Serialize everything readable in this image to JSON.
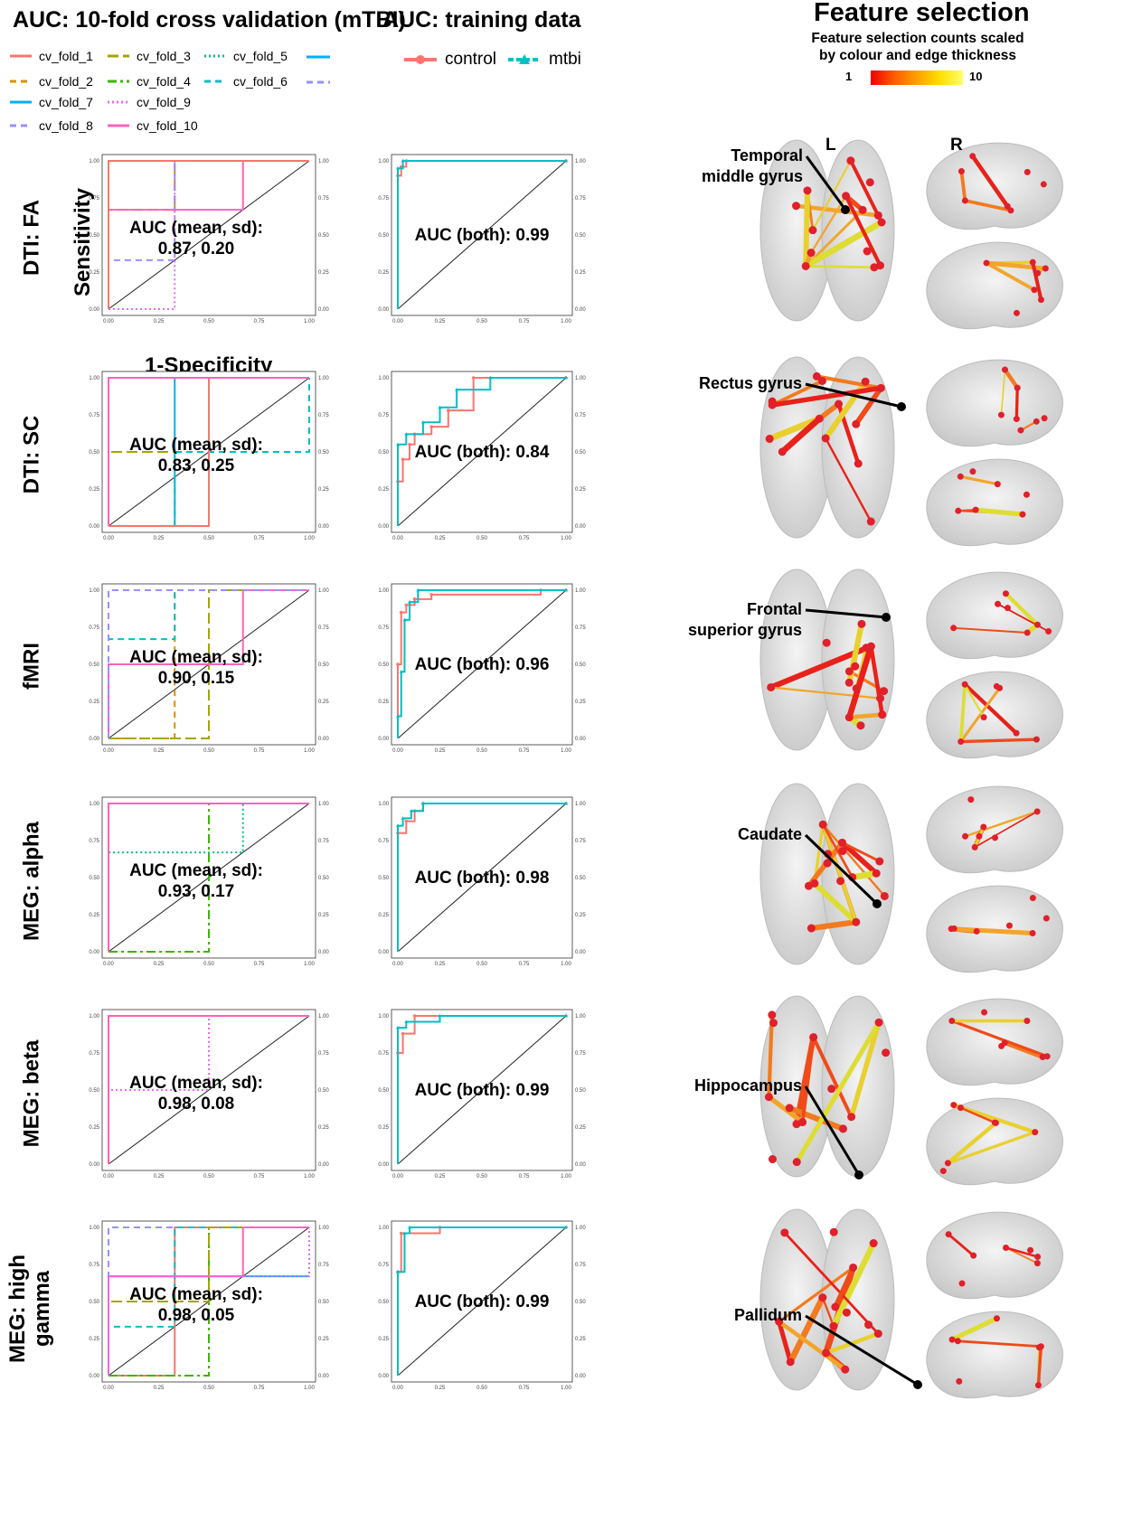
{
  "titles": {
    "cv": "AUC: 10-fold cross validation (mTBI)",
    "train": "AUC: training data",
    "feature": "Feature selection",
    "feature_sub1": "Feature selection counts scaled",
    "feature_sub2": "by colour and edge thickness",
    "scale_min": "1",
    "scale_max": "10",
    "side_left": "L",
    "side_right": "R"
  },
  "axes": {
    "ylabel": "Sensitivity",
    "xlabel": "1-Specificity",
    "ticks": [
      "0.00",
      "0.25",
      "0.50",
      "0.75",
      "1.00"
    ]
  },
  "cv_legend": [
    {
      "name": "cv_fold_1",
      "color": "#F8766D",
      "dash": "solid"
    },
    {
      "name": "cv_fold_2",
      "color": "#D89000",
      "dash": "dashed"
    },
    {
      "name": "cv_fold_3",
      "color": "#A3A500",
      "dash": "longdash"
    },
    {
      "name": "cv_fold_4",
      "color": "#39B600",
      "dash": "twodash"
    },
    {
      "name": "cv_fold_5",
      "color": "#00BF7D",
      "dash": "dotted"
    },
    {
      "name": "cv_fold_6",
      "color": "#00BFC4",
      "dash": "dashed"
    },
    {
      "name": "cv_fold_7",
      "color": "#00B0F6",
      "dash": "solid"
    },
    {
      "name": "cv_fold_8",
      "color": "#9590FF",
      "dash": "dashed"
    },
    {
      "name": "cv_fold_9",
      "color": "#E76BF3",
      "dash": "dotted"
    },
    {
      "name": "cv_fold_10",
      "color": "#FF62BC",
      "dash": "solid"
    }
  ],
  "train_legend": [
    {
      "name": "control",
      "color": "#F8766D"
    },
    {
      "name": "mtbi",
      "color": "#00BFC4"
    }
  ],
  "chart_data": [
    {
      "type": "line",
      "row": "DTI: FA",
      "panel": "cv",
      "auc_text": "AUC (mean, sd):\n0.87, 0.20",
      "ylim": [
        0,
        1
      ],
      "xlim": [
        0,
        1
      ],
      "series": [
        {
          "name": "cv_fold_3",
          "x": [
            0,
            0,
            0.33,
            0.33,
            1
          ],
          "y": [
            0,
            0.67,
            0.67,
            1,
            1
          ]
        },
        {
          "name": "cv_fold_8",
          "x": [
            0,
            0,
            0.33,
            0.33,
            1
          ],
          "y": [
            0,
            0.33,
            0.33,
            1,
            1
          ]
        },
        {
          "name": "cv_fold_9",
          "x": [
            0,
            0,
            0.33,
            0.33,
            1
          ],
          "y": [
            0,
            0,
            0,
            1,
            1
          ]
        },
        {
          "name": "cv_fold_10",
          "x": [
            0,
            0,
            0.67,
            0.67,
            1
          ],
          "y": [
            0,
            0.67,
            0.67,
            1,
            1
          ]
        },
        {
          "name": "cv_fold_1",
          "x": [
            0,
            0,
            1
          ],
          "y": [
            0,
            1,
            1
          ]
        }
      ]
    },
    {
      "type": "line",
      "row": "DTI: FA",
      "panel": "train",
      "auc_text": "AUC (both): 0.99",
      "ylim": [
        0,
        1
      ],
      "xlim": [
        0,
        1
      ],
      "series": [
        {
          "name": "control",
          "x": [
            0,
            0,
            0.02,
            0.02,
            0.05,
            0.05,
            1
          ],
          "y": [
            0,
            0.9,
            0.9,
            0.96,
            0.96,
            1,
            1
          ]
        },
        {
          "name": "mtbi",
          "x": [
            0,
            0,
            0.03,
            0.03,
            1
          ],
          "y": [
            0,
            0.95,
            0.95,
            1,
            1
          ]
        }
      ]
    },
    {
      "type": "line",
      "row": "DTI: SC",
      "panel": "cv",
      "auc_text": "AUC (mean, sd):\n0.83, 0.25",
      "ylim": [
        0,
        1
      ],
      "xlim": [
        0,
        1
      ],
      "series": [
        {
          "name": "cv_fold_7",
          "x": [
            0,
            0.33,
            0.33,
            1
          ],
          "y": [
            0,
            0,
            1,
            1
          ]
        },
        {
          "name": "cv_fold_6",
          "x": [
            0,
            0.33,
            0.33,
            0.33,
            1,
            1
          ],
          "y": [
            0,
            0,
            0.5,
            0.5,
            0.5,
            1
          ]
        },
        {
          "name": "cv_fold_3",
          "x": [
            0,
            0,
            0.33
          ],
          "y": [
            0,
            0.5,
            0.5
          ]
        },
        {
          "name": "cv_fold_1",
          "x": [
            0,
            0.5,
            0.5,
            1
          ],
          "y": [
            0,
            0,
            1,
            1
          ]
        },
        {
          "name": "cv_fold_10",
          "x": [
            0,
            0,
            1
          ],
          "y": [
            0,
            1,
            1
          ]
        }
      ]
    },
    {
      "type": "line",
      "row": "DTI: SC",
      "panel": "train",
      "auc_text": "AUC (both): 0.84",
      "ylim": [
        0,
        1
      ],
      "xlim": [
        0,
        1
      ],
      "series": [
        {
          "name": "control",
          "x": [
            0,
            0,
            0.03,
            0.03,
            0.07,
            0.07,
            0.1,
            0.1,
            0.2,
            0.2,
            0.3,
            0.3,
            0.45,
            0.45,
            1
          ],
          "y": [
            0,
            0.3,
            0.3,
            0.45,
            0.45,
            0.55,
            0.55,
            0.62,
            0.62,
            0.67,
            0.67,
            0.78,
            0.78,
            1,
            1
          ]
        },
        {
          "name": "mtbi",
          "x": [
            0,
            0,
            0.05,
            0.05,
            0.15,
            0.15,
            0.25,
            0.25,
            0.35,
            0.35,
            0.55,
            0.55,
            1
          ],
          "y": [
            0,
            0.55,
            0.55,
            0.62,
            0.62,
            0.7,
            0.7,
            0.8,
            0.8,
            0.92,
            0.92,
            1,
            1
          ]
        }
      ]
    },
    {
      "type": "line",
      "row": "fMRI",
      "panel": "cv",
      "auc_text": "AUC (mean, sd):\n0.90, 0.15",
      "ylim": [
        0,
        1
      ],
      "xlim": [
        0,
        1
      ],
      "series": [
        {
          "name": "cv_fold_2",
          "x": [
            0,
            0.33,
            0.33,
            1
          ],
          "y": [
            0,
            0,
            1,
            1
          ]
        },
        {
          "name": "cv_fold_3",
          "x": [
            0,
            0.5,
            0.5,
            1
          ],
          "y": [
            0,
            0,
            1,
            1
          ]
        },
        {
          "name": "cv_fold_6",
          "x": [
            0,
            0,
            0.33,
            0.33,
            1
          ],
          "y": [
            0,
            0.67,
            0.67,
            1,
            1
          ]
        },
        {
          "name": "cv_fold_10",
          "x": [
            0,
            0,
            0.67,
            0.67,
            1
          ],
          "y": [
            0,
            0.5,
            0.5,
            1,
            1
          ]
        },
        {
          "name": "cv_fold_8",
          "x": [
            0,
            0,
            1
          ],
          "y": [
            0,
            1,
            1
          ]
        }
      ]
    },
    {
      "type": "line",
      "row": "fMRI",
      "panel": "train",
      "auc_text": "AUC (both): 0.96",
      "ylim": [
        0,
        1
      ],
      "xlim": [
        0,
        1
      ],
      "series": [
        {
          "name": "control",
          "x": [
            0,
            0,
            0.02,
            0.02,
            0.05,
            0.05,
            0.1,
            0.1,
            0.2,
            0.2,
            0.85,
            0.85,
            1
          ],
          "y": [
            0,
            0.5,
            0.5,
            0.85,
            0.85,
            0.9,
            0.9,
            0.94,
            0.94,
            0.97,
            0.97,
            1,
            1
          ]
        },
        {
          "name": "mtbi",
          "x": [
            0,
            0,
            0.02,
            0.02,
            0.04,
            0.04,
            0.07,
            0.07,
            0.12,
            0.12,
            1
          ],
          "y": [
            0,
            0.15,
            0.15,
            0.45,
            0.45,
            0.8,
            0.8,
            0.92,
            0.92,
            1,
            1
          ]
        }
      ]
    },
    {
      "type": "line",
      "row": "MEG: alpha",
      "panel": "cv",
      "auc_text": "AUC (mean, sd):\n0.93, 0.17",
      "ylim": [
        0,
        1
      ],
      "xlim": [
        0,
        1
      ],
      "series": [
        {
          "name": "cv_fold_4",
          "x": [
            0,
            0.5,
            0.5,
            1
          ],
          "y": [
            0,
            0,
            1,
            1
          ]
        },
        {
          "name": "cv_fold_5",
          "x": [
            0,
            0,
            0.67,
            0.67,
            1
          ],
          "y": [
            0,
            0.67,
            0.67,
            1,
            1
          ]
        },
        {
          "name": "cv_fold_10",
          "x": [
            0,
            0,
            1
          ],
          "y": [
            0,
            1,
            1
          ]
        }
      ]
    },
    {
      "type": "line",
      "row": "MEG: alpha",
      "panel": "train",
      "auc_text": "AUC (both): 0.98",
      "ylim": [
        0,
        1
      ],
      "xlim": [
        0,
        1
      ],
      "series": [
        {
          "name": "control",
          "x": [
            0,
            0,
            0.05,
            0.05,
            0.1,
            0.1,
            0.15,
            0.15,
            1
          ],
          "y": [
            0,
            0.8,
            0.8,
            0.88,
            0.88,
            0.95,
            0.95,
            1,
            1
          ]
        },
        {
          "name": "mtbi",
          "x": [
            0,
            0,
            0.03,
            0.03,
            0.08,
            0.08,
            0.15,
            0.15,
            1
          ],
          "y": [
            0,
            0.85,
            0.85,
            0.9,
            0.9,
            0.95,
            0.95,
            1,
            1
          ]
        }
      ]
    },
    {
      "type": "line",
      "row": "MEG: beta",
      "panel": "cv",
      "auc_text": "AUC (mean, sd):\n0.98, 0.08",
      "ylim": [
        0,
        1
      ],
      "xlim": [
        0,
        1
      ],
      "series": [
        {
          "name": "cv_fold_9",
          "x": [
            0,
            0,
            0.5,
            0.5,
            1
          ],
          "y": [
            0,
            0.5,
            0.5,
            1,
            1
          ]
        },
        {
          "name": "cv_fold_10",
          "x": [
            0,
            0,
            1
          ],
          "y": [
            0,
            1,
            1
          ]
        }
      ]
    },
    {
      "type": "line",
      "row": "MEG: beta",
      "panel": "train",
      "auc_text": "AUC (both): 0.99",
      "ylim": [
        0,
        1
      ],
      "xlim": [
        0,
        1
      ],
      "series": [
        {
          "name": "control",
          "x": [
            0,
            0,
            0.03,
            0.03,
            0.1,
            0.1,
            1
          ],
          "y": [
            0,
            0.75,
            0.75,
            0.88,
            0.88,
            1,
            1
          ]
        },
        {
          "name": "mtbi",
          "x": [
            0,
            0,
            0.05,
            0.05,
            0.25,
            0.25,
            1
          ],
          "y": [
            0,
            0.92,
            0.92,
            0.96,
            0.96,
            1,
            1
          ]
        }
      ]
    },
    {
      "type": "line",
      "row": "MEG: high gamma",
      "panel": "cv",
      "auc_text": "AUC (mean, sd):\n0.98, 0.05",
      "ylim": [
        0,
        1
      ],
      "xlim": [
        0,
        1
      ],
      "series": [
        {
          "name": "cv_fold_8",
          "x": [
            0,
            0,
            1
          ],
          "y": [
            0,
            1,
            1
          ]
        },
        {
          "name": "cv_fold_1",
          "x": [
            0,
            0.33,
            0.33,
            1
          ],
          "y": [
            0,
            0,
            1,
            1
          ]
        },
        {
          "name": "cv_fold_4",
          "x": [
            0,
            0.5,
            0.5,
            1
          ],
          "y": [
            0,
            0,
            1,
            1
          ]
        },
        {
          "name": "cv_fold_7",
          "x": [
            0,
            0,
            1
          ],
          "y": [
            0,
            0.67,
            0.67
          ]
        },
        {
          "name": "cv_fold_6",
          "x": [
            0,
            0,
            0.33,
            0.33,
            1
          ],
          "y": [
            0,
            0.33,
            0.33,
            1,
            1
          ]
        },
        {
          "name": "cv_fold_3",
          "x": [
            0,
            0,
            0.5,
            0.5,
            1
          ],
          "y": [
            0,
            0.5,
            0.5,
            1,
            1
          ]
        },
        {
          "name": "cv_fold_10",
          "x": [
            0,
            0,
            0.67,
            0.67,
            1
          ],
          "y": [
            0,
            0.67,
            0.67,
            1,
            1
          ]
        },
        {
          "name": "cv_fold_9",
          "x": [
            0,
            0,
            1,
            1
          ],
          "y": [
            0,
            0.67,
            0.67,
            1
          ]
        }
      ]
    },
    {
      "type": "line",
      "row": "MEG: high gamma",
      "panel": "train",
      "auc_text": "AUC (both): 0.99",
      "ylim": [
        0,
        1
      ],
      "xlim": [
        0,
        1
      ],
      "series": [
        {
          "name": "control",
          "x": [
            0,
            0,
            0.02,
            0.02,
            0.25,
            0.25,
            1
          ],
          "y": [
            0,
            0.7,
            0.7,
            0.96,
            0.96,
            1,
            1
          ]
        },
        {
          "name": "mtbi",
          "x": [
            0,
            0,
            0.04,
            0.04,
            0.07,
            0.07,
            1
          ],
          "y": [
            0,
            0.7,
            0.7,
            0.96,
            0.96,
            1,
            1
          ]
        }
      ]
    }
  ],
  "rows": [
    {
      "label": "DTI: FA"
    },
    {
      "label": "DTI: SC"
    },
    {
      "label": "fMRI"
    },
    {
      "label": "MEG: alpha"
    },
    {
      "label": "MEG: beta"
    },
    {
      "label": "MEG: high\ngamma"
    }
  ],
  "brain_labels": [
    {
      "text": "Temporal\nmiddle gyrus"
    },
    {
      "text": "Rectus gyrus"
    },
    {
      "text": "Frontal\nsuperior gyrus"
    },
    {
      "text": "Caudate"
    },
    {
      "text": "Hippocampus"
    },
    {
      "text": "Pallidum"
    }
  ]
}
